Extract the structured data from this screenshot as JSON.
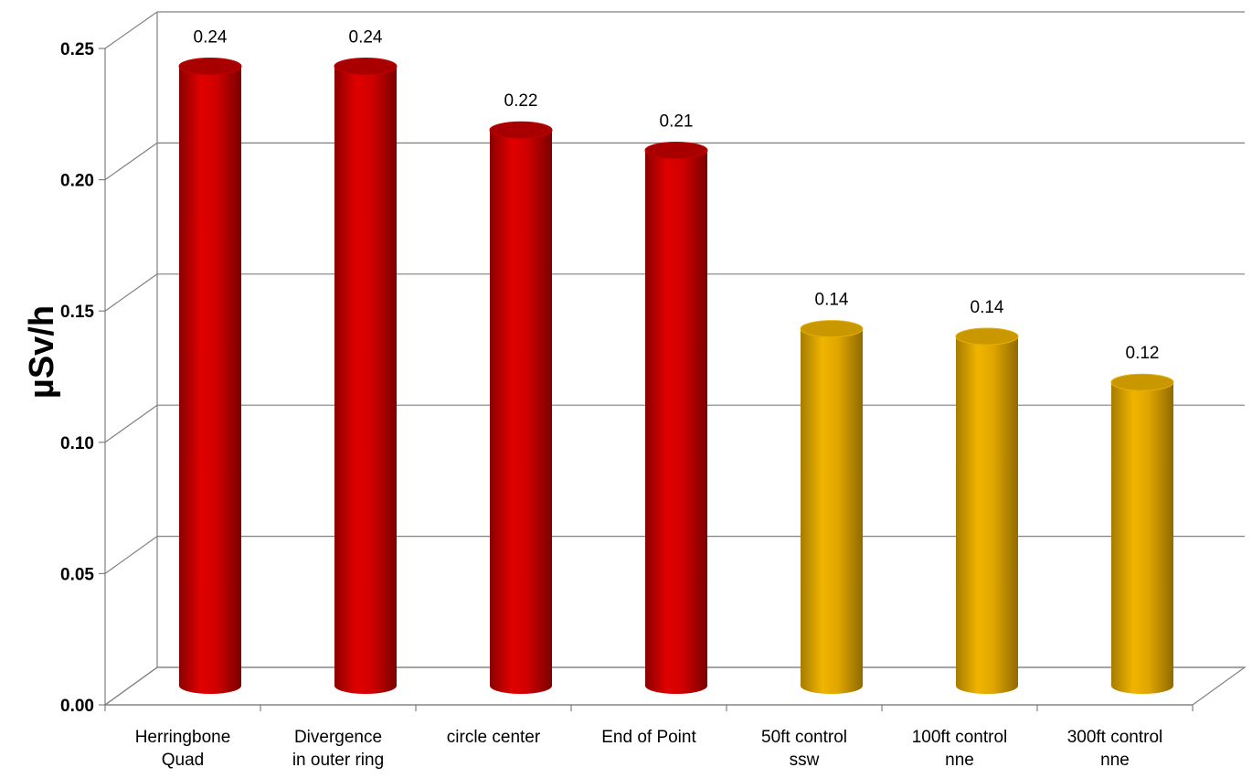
{
  "chart_data": {
    "type": "bar",
    "title": "",
    "xlabel": "",
    "ylabel": "µSv/h",
    "ylim": [
      0,
      0.25
    ],
    "yticks": [
      "0.00",
      "0.05",
      "0.10",
      "0.15",
      "0.20",
      "0.25"
    ],
    "categories": [
      [
        "Herringbone",
        "Quad"
      ],
      [
        "Divergence",
        "in outer ring"
      ],
      [
        "circle center"
      ],
      [
        "End of Point"
      ],
      [
        "50ft control",
        "ssw"
      ],
      [
        "100ft control",
        "nne"
      ],
      [
        "300ft control",
        "nne"
      ]
    ],
    "values": [
      0.243,
      0.243,
      0.218,
      0.21,
      0.14,
      0.137,
      0.119
    ],
    "data_labels": [
      "0.24",
      "0.24",
      "0.22",
      "0.21",
      "0.14",
      "0.14",
      "0.12"
    ],
    "bar_colors": [
      "#cc0000",
      "#cc0000",
      "#cc0000",
      "#cc0000",
      "#d9a300",
      "#d9a300",
      "#d9a300"
    ],
    "grid": true,
    "style": "3d-cylinder"
  }
}
